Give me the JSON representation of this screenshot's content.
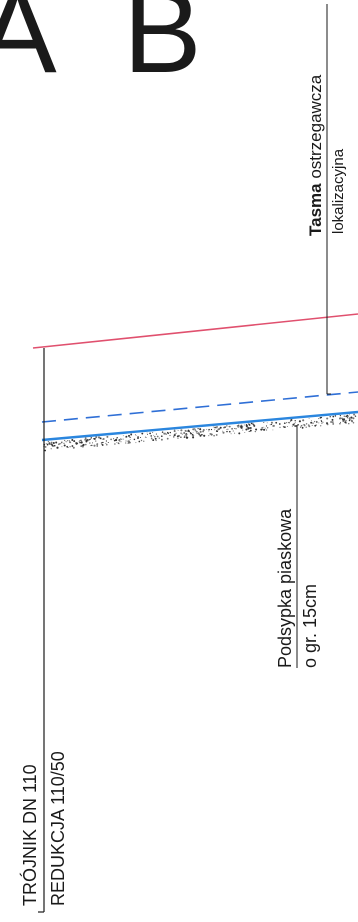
{
  "title_letters": "A B",
  "callouts": {
    "warning_tape": {
      "bold": "Tasma",
      "rest": " ostrzegawcza",
      "line2": "lokalizacyjna"
    },
    "sand_bedding": {
      "line1": "Podsypka piaskowa",
      "line2": "o gr. 15cm"
    },
    "fitting": {
      "line1": "TRÓJNIK DN 110",
      "line2": "REDUKCJA 110/50"
    }
  },
  "colors": {
    "terrain_line": "#e0506e",
    "tape_line": "#2f6fd6",
    "pipe_line": "#2b86de",
    "ink": "#1a1a1a"
  }
}
